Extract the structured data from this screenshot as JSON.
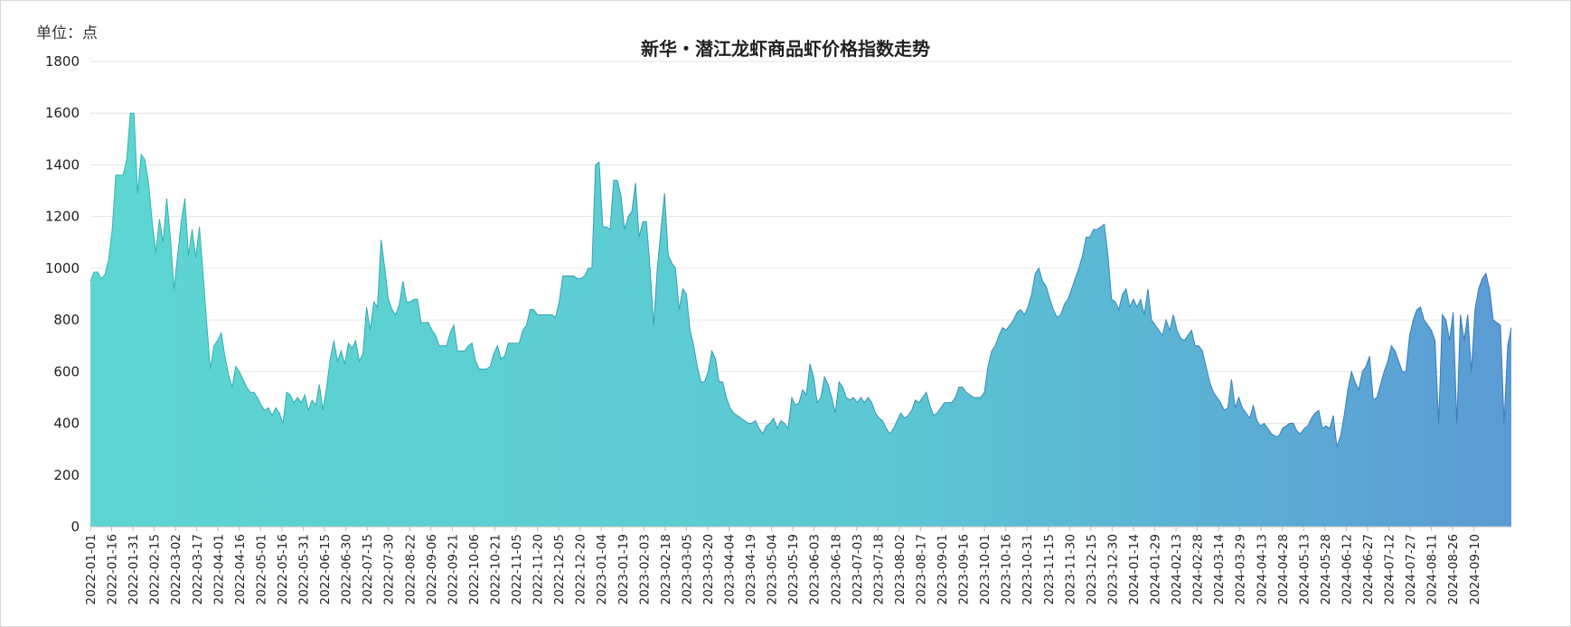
{
  "unit_label": "单位：点",
  "colors": {
    "start": "#5dd6d2",
    "end": "#5b9bd5",
    "grid": "#e6e6e6",
    "axis": "#bfbfbf"
  },
  "chart_data": {
    "type": "area",
    "title": "新华・潜江龙虾商品虾价格指数走势",
    "xlabel": "",
    "ylabel": "",
    "unit": "点",
    "ylim": [
      0,
      1800
    ],
    "yticks": [
      0,
      200,
      400,
      600,
      800,
      1000,
      1200,
      1400,
      1600,
      1800
    ],
    "grid": true,
    "legend": "none",
    "x_tick_labels": [
      "2022-01-01",
      "2022-01-16",
      "2022-01-31",
      "2022-02-15",
      "2022-03-02",
      "2022-03-17",
      "2022-04-01",
      "2022-04-16",
      "2022-05-01",
      "2022-05-16",
      "2022-05-31",
      "2022-06-15",
      "2022-06-30",
      "2022-07-15",
      "2022-07-30",
      "2022-08-22",
      "2022-09-06",
      "2022-09-21",
      "2022-10-06",
      "2022-10-21",
      "2022-11-05",
      "2022-11-20",
      "2022-12-05",
      "2022-12-20",
      "2023-01-04",
      "2023-01-19",
      "2023-02-03",
      "2023-02-18",
      "2023-03-05",
      "2023-03-20",
      "2023-04-04",
      "2023-04-19",
      "2023-05-04",
      "2023-05-19",
      "2023-06-03",
      "2023-06-18",
      "2023-07-03",
      "2023-07-18",
      "2023-08-02",
      "2023-08-17",
      "2023-09-01",
      "2023-09-16",
      "2023-10-01",
      "2023-10-16",
      "2023-10-31",
      "2023-11-15",
      "2023-11-30",
      "2023-12-15",
      "2023-12-30",
      "2024-01-14",
      "2024-01-29",
      "2024-02-13",
      "2024-02-28",
      "2024-03-14",
      "2024-03-29",
      "2024-04-13",
      "2024-04-28",
      "2024-05-13",
      "2024-05-28",
      "2024-06-12",
      "2024-06-27",
      "2024-07-12",
      "2024-07-27",
      "2024-08-11",
      "2024-08-26",
      "2024-09-10"
    ],
    "series": [
      {
        "values": [
          950,
          985,
          985,
          960,
          975,
          1030,
          1150,
          1360,
          1360,
          1360,
          1420,
          1600,
          1600,
          1290,
          1440,
          1420,
          1330,
          1180,
          1060,
          1190,
          1100,
          1270,
          1120,
          920,
          1050,
          1180,
          1270,
          1050,
          1150,
          1040,
          1160,
          980,
          790,
          610,
          700,
          720,
          750,
          660,
          590,
          540,
          620,
          600,
          570,
          540,
          520,
          520,
          500,
          470,
          450,
          460,
          430,
          460,
          440,
          400,
          520,
          510,
          480,
          500,
          480,
          510,
          450,
          490,
          470,
          550,
          450,
          540,
          650,
          720,
          640,
          680,
          630,
          710,
          690,
          720,
          640,
          670,
          850,
          760,
          870,
          850,
          1110,
          1000,
          880,
          840,
          820,
          860,
          950,
          870,
          870,
          880,
          880,
          790,
          790,
          790,
          760,
          740,
          700,
          700,
          700,
          750,
          780,
          680,
          680,
          680,
          700,
          710,
          640,
          610,
          610,
          610,
          620,
          670,
          700,
          650,
          660,
          710,
          710,
          710,
          710,
          760,
          780,
          840,
          840,
          820,
          820,
          820,
          820,
          820,
          810,
          870,
          970,
          970,
          970,
          970,
          960,
          960,
          970,
          1000,
          1000,
          1400,
          1410,
          1160,
          1160,
          1150,
          1340,
          1340,
          1280,
          1150,
          1200,
          1220,
          1330,
          1120,
          1180,
          1180,
          1000,
          780,
          1000,
          1150,
          1290,
          1050,
          1020,
          1000,
          840,
          920,
          900,
          760,
          700,
          620,
          560,
          560,
          600,
          680,
          650,
          560,
          560,
          500,
          460,
          440,
          430,
          420,
          410,
          400,
          400,
          410,
          380,
          360,
          390,
          400,
          420,
          380,
          410,
          400,
          380,
          500,
          470,
          480,
          530,
          510,
          630,
          580,
          480,
          500,
          580,
          550,
          500,
          440,
          560,
          540,
          500,
          490,
          500,
          480,
          500,
          480,
          500,
          480,
          440,
          420,
          410,
          380,
          360,
          380,
          410,
          440,
          420,
          430,
          450,
          490,
          480,
          500,
          520,
          470,
          430,
          440,
          460,
          480,
          480,
          480,
          500,
          540,
          540,
          520,
          510,
          500,
          500,
          500,
          520,
          620,
          680,
          700,
          740,
          770,
          760,
          780,
          800,
          830,
          840,
          820,
          850,
          900,
          980,
          1000,
          950,
          930,
          880,
          840,
          810,
          820,
          860,
          880,
          920,
          960,
          1000,
          1050,
          1120,
          1120,
          1150,
          1150,
          1160,
          1170,
          1050,
          880,
          870,
          840,
          900,
          920,
          850,
          880,
          850,
          880,
          820,
          920,
          800,
          780,
          760,
          740,
          800,
          760,
          820,
          760,
          730,
          720,
          740,
          760,
          700,
          700,
          680,
          620,
          560,
          520,
          500,
          480,
          450,
          460,
          570,
          460,
          500,
          460,
          440,
          420,
          470,
          410,
          390,
          400,
          380,
          360,
          350,
          350,
          380,
          390,
          400,
          400,
          370,
          360,
          380,
          390,
          420,
          440,
          450,
          380,
          390,
          380,
          430,
          310,
          350,
          430,
          530,
          600,
          560,
          530,
          600,
          620,
          660,
          490,
          500,
          550,
          600,
          640,
          700,
          680,
          640,
          600,
          600,
          740,
          800,
          840,
          850,
          800,
          780,
          760,
          720,
          400,
          820,
          800,
          720,
          830,
          400,
          820,
          720,
          820,
          600,
          840,
          920,
          960,
          980,
          920,
          800,
          790,
          780,
          400,
          700,
          770
        ]
      }
    ]
  }
}
